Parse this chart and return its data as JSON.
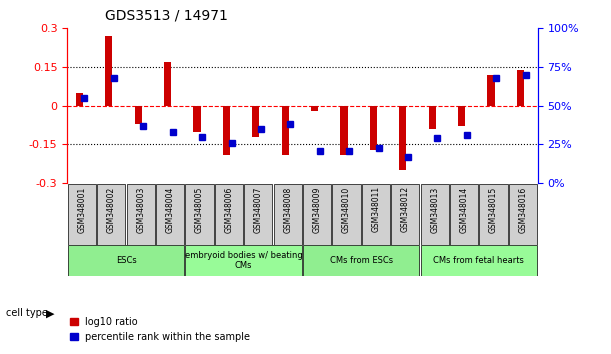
{
  "title": "GDS3513 / 14971",
  "samples": [
    "GSM348001",
    "GSM348002",
    "GSM348003",
    "GSM348004",
    "GSM348005",
    "GSM348006",
    "GSM348007",
    "GSM348008",
    "GSM348009",
    "GSM348010",
    "GSM348011",
    "GSM348012",
    "GSM348013",
    "GSM348014",
    "GSM348015",
    "GSM348016"
  ],
  "log10_ratio": [
    0.05,
    0.27,
    -0.07,
    0.17,
    -0.1,
    -0.19,
    -0.12,
    -0.19,
    -0.02,
    -0.19,
    -0.17,
    -0.25,
    -0.09,
    -0.08,
    0.12,
    0.14
  ],
  "percentile_rank": [
    55,
    68,
    37,
    33,
    30,
    26,
    35,
    38,
    21,
    21,
    23,
    17,
    29,
    31,
    68,
    70
  ],
  "ylim": [
    -0.3,
    0.3
  ],
  "yticks": [
    -0.3,
    -0.15,
    0,
    0.15,
    0.3
  ],
  "yticks_right": [
    0,
    25,
    50,
    75,
    100
  ],
  "hlines": [
    0.15,
    -0.15
  ],
  "cell_types": [
    {
      "label": "ESCs",
      "start": 0,
      "end": 3,
      "color": "#90EE90"
    },
    {
      "label": "embryoid bodies w/ beating\nCMs",
      "start": 4,
      "end": 7,
      "color": "#98FB98"
    },
    {
      "label": "CMs from ESCs",
      "start": 8,
      "end": 11,
      "color": "#90EE90"
    },
    {
      "label": "CMs from fetal hearts",
      "start": 12,
      "end": 15,
      "color": "#98FB98"
    }
  ],
  "bar_color_red": "#CC0000",
  "bar_color_blue": "#0000CC",
  "bg_color": "#FFFFFF",
  "grid_color": "#DDDDDD",
  "sample_bg": "#D0D0D0"
}
